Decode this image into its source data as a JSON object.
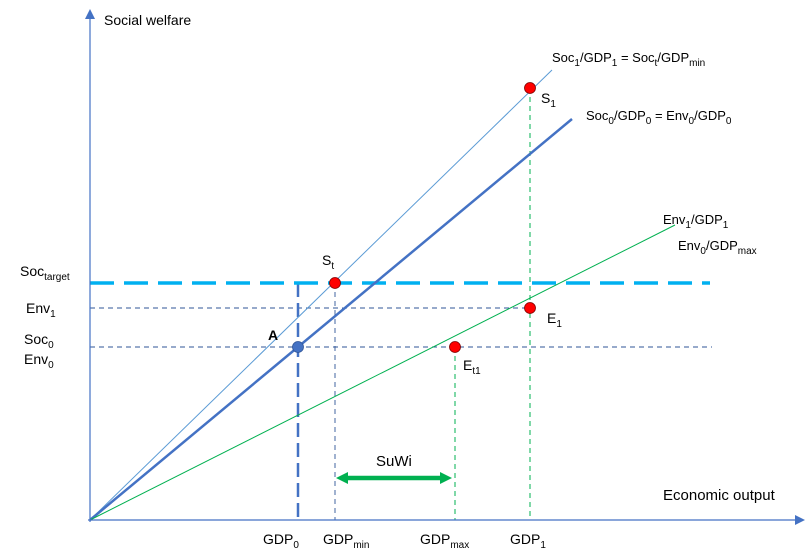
{
  "axes": {
    "y_title": "Social welfare",
    "x_title": "Economic output"
  },
  "lines": {
    "thin_line": {
      "base": "Soc",
      "s1": "1",
      "mid1": "/GDP",
      "s2": "1",
      "mid2": " = Soc",
      "s3": "t",
      "mid3": "/GDP",
      "s4": "min"
    },
    "thick_line": {
      "base": "Soc",
      "s1": "0",
      "mid1": "/GDP",
      "s2": "0",
      "mid2": " = Env",
      "s3": "0",
      "mid3": "/GDP",
      "s4": "0"
    },
    "green_line_1": {
      "base": "Env",
      "s1": "1",
      "mid1": "/GDP",
      "s2": "1"
    },
    "green_line_2": {
      "base": "Env",
      "s1": "0",
      "mid1": "/GDP",
      "s2": "max"
    }
  },
  "y_labels": {
    "soc_target": {
      "base": "Soc",
      "sub": "target"
    },
    "env1": {
      "base": "Env",
      "sub": "1"
    },
    "soc0": {
      "base": "Soc",
      "sub": "0"
    },
    "env0": {
      "base": "Env",
      "sub": "0"
    }
  },
  "x_labels": {
    "gdp0": {
      "base": "GDP",
      "sub": "0"
    },
    "gdp_min": {
      "base": "GDP",
      "sub": "min"
    },
    "gdp_max": {
      "base": "GDP",
      "sub": "max"
    },
    "gdp1": {
      "base": "GDP",
      "sub": "1"
    }
  },
  "points": {
    "s1": {
      "base": "S",
      "sub": "1"
    },
    "st": {
      "base": "S",
      "sub": "t"
    },
    "e1": {
      "base": "E",
      "sub": "1"
    },
    "et1": {
      "base": "E",
      "sub": "t1"
    },
    "a": {
      "text": "A"
    }
  },
  "suwi": "SuWi",
  "colors": {
    "axis": "#4472c4",
    "thick_line": "#4472c4",
    "thin_line": "#5b9bd5",
    "green": "#00b050",
    "arrow_green": "#00b050",
    "target_dash": "#00b0f0",
    "red_point": "#ff0000",
    "blue_point": "#4472c4",
    "dashed_ref": "#2f5597"
  }
}
